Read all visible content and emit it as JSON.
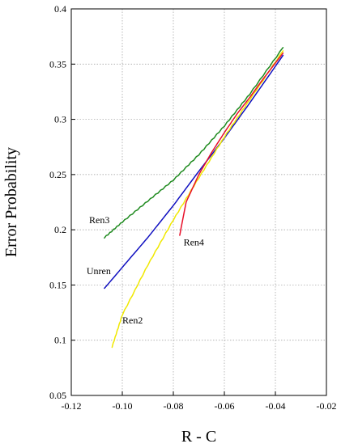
{
  "chart_data": {
    "type": "line",
    "title": "",
    "xlabel": "R - C",
    "ylabel": "Error Probability",
    "xlim": [
      -0.12,
      -0.02
    ],
    "ylim": [
      0.05,
      0.4
    ],
    "xticks": [
      -0.12,
      -0.1,
      -0.08,
      -0.06,
      -0.04,
      -0.02
    ],
    "xtick_labels": [
      "-0.12",
      "-0.10",
      "-0.08",
      "-0.06",
      "-0.04",
      "-0.02"
    ],
    "yticks": [
      0.05,
      0.1,
      0.15,
      0.2,
      0.25,
      0.3,
      0.35,
      0.4
    ],
    "ytick_labels": [
      "0.05",
      "0.1",
      "0.15",
      "0.2",
      "0.25",
      "0.3",
      "0.35",
      "0.4"
    ],
    "grid": true,
    "legend": "none",
    "series": [
      {
        "name": "Ren3",
        "color": "#1e8a1e",
        "x": [
          -0.107,
          -0.1,
          -0.09,
          -0.08,
          -0.07,
          -0.06,
          -0.05,
          -0.037
        ],
        "y": [
          0.193,
          0.207,
          0.226,
          0.245,
          0.268,
          0.294,
          0.323,
          0.365
        ]
      },
      {
        "name": "Unren",
        "color": "#1010c0",
        "x": [
          -0.107,
          -0.1,
          -0.09,
          -0.08,
          -0.07,
          -0.06,
          -0.05,
          -0.037
        ],
        "y": [
          0.147,
          0.166,
          0.193,
          0.222,
          0.253,
          0.283,
          0.315,
          0.358
        ]
      },
      {
        "name": "Ren2",
        "color": "#f0e800",
        "x": [
          -0.104,
          -0.1,
          -0.09,
          -0.08,
          -0.07,
          -0.06,
          -0.05,
          -0.037
        ],
        "y": [
          0.094,
          0.123,
          0.168,
          0.209,
          0.247,
          0.284,
          0.318,
          0.362
        ]
      },
      {
        "name": "Ren4",
        "color": "#e8102a",
        "x": [
          -0.0775,
          -0.075,
          -0.07,
          -0.065,
          -0.06,
          -0.055,
          -0.05,
          -0.045,
          -0.037
        ],
        "y": [
          0.195,
          0.225,
          0.25,
          0.27,
          0.288,
          0.305,
          0.32,
          0.336,
          0.36
        ]
      }
    ],
    "annotations": [
      {
        "text": "Ren3",
        "series": "Ren3",
        "x": -0.113,
        "y": 0.206
      },
      {
        "text": "Unren",
        "series": "Unren",
        "x": -0.114,
        "y": 0.16
      },
      {
        "text": "Ren2",
        "series": "Ren2",
        "x": -0.1,
        "y": 0.115
      },
      {
        "text": "Ren4",
        "series": "Ren4",
        "x": -0.076,
        "y": 0.186
      }
    ]
  }
}
